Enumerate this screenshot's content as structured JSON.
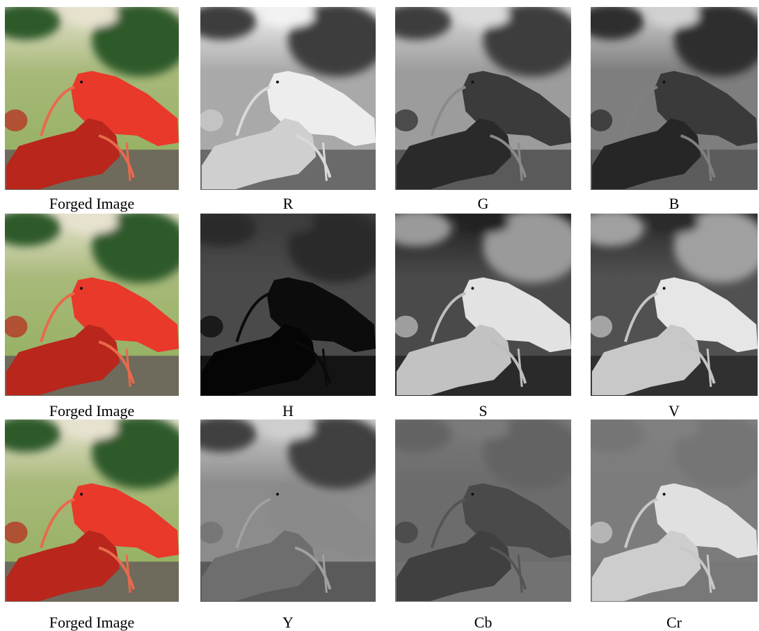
{
  "figure": {
    "rows": [
      {
        "panels": [
          {
            "caption": "Forged Image",
            "kind": "color"
          },
          {
            "caption": "R",
            "kind": "r"
          },
          {
            "caption": "G",
            "kind": "g"
          },
          {
            "caption": "B",
            "kind": "b"
          }
        ]
      },
      {
        "panels": [
          {
            "caption": "Forged Image",
            "kind": "color"
          },
          {
            "caption": "H",
            "kind": "h"
          },
          {
            "caption": "S",
            "kind": "s"
          },
          {
            "caption": "V",
            "kind": "v"
          }
        ]
      },
      {
        "panels": [
          {
            "caption": "Forged Image",
            "kind": "color"
          },
          {
            "caption": "Y",
            "kind": "y"
          },
          {
            "caption": "Cb",
            "kind": "cb"
          },
          {
            "caption": "Cr",
            "kind": "cr"
          }
        ]
      }
    ],
    "colors": {
      "bird_red": "#e8392a",
      "bird_red_dark": "#b8261c",
      "grass": "#8fae5a",
      "foliage": "#2f5a2a",
      "sky_light": "#e6e2cf",
      "nest": "#6e6a5c"
    }
  }
}
